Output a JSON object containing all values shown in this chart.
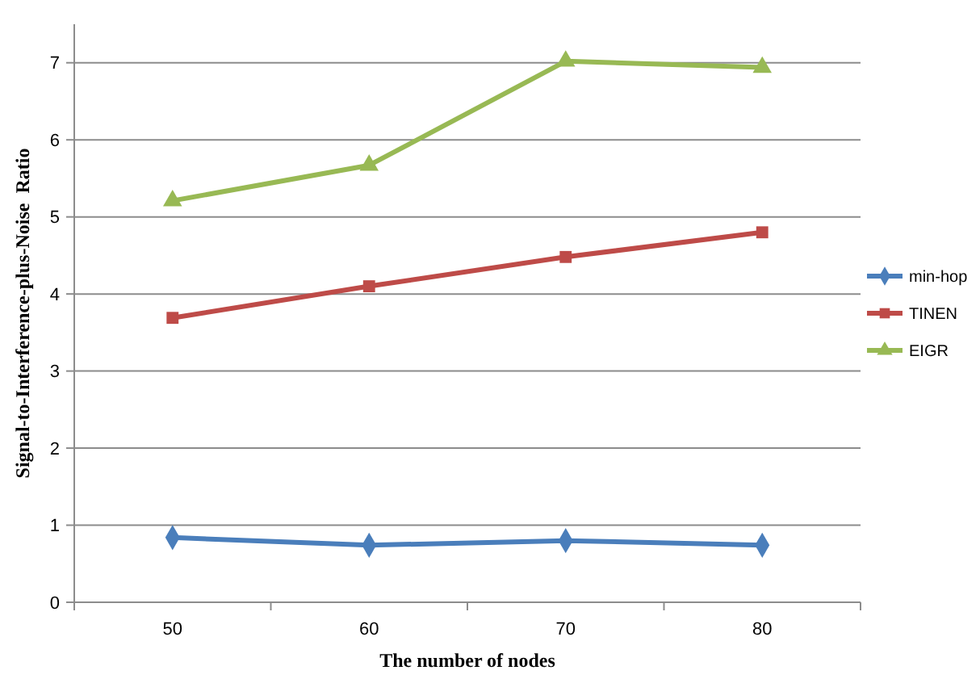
{
  "chart_data": {
    "type": "line",
    "xlabel": "The number  of nodes",
    "ylabel": "Signal-to-Interference-plus-Noise  Ratio",
    "categories": [
      "50",
      "60",
      "70",
      "80"
    ],
    "series": [
      {
        "name": "min-hop",
        "color": "#4a7ebb",
        "marker": "diamond",
        "values": [
          0.84,
          0.74,
          0.8,
          0.74
        ]
      },
      {
        "name": "TINEN",
        "color": "#be4b48",
        "marker": "square",
        "values": [
          3.69,
          4.1,
          4.48,
          4.8
        ]
      },
      {
        "name": "EIGR",
        "color": "#98b954",
        "marker": "triangle",
        "values": [
          5.21,
          5.67,
          7.02,
          6.94
        ]
      }
    ],
    "ylim": [
      0,
      7.5
    ],
    "yticks": [
      0,
      1,
      2,
      3,
      4,
      5,
      6,
      7
    ],
    "grid": "y",
    "legend": "right"
  }
}
